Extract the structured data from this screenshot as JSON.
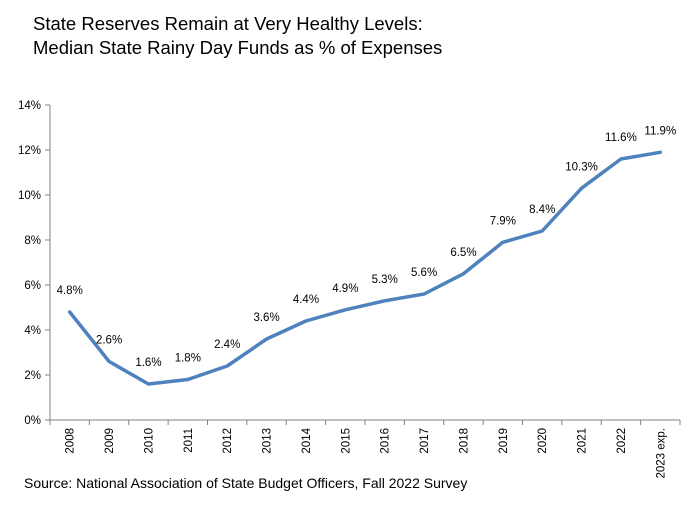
{
  "title_line1": "State Reserves Remain at Very Healthy Levels:",
  "title_line2": "Median State Rainy Day Funds as % of Expenses",
  "source": "Source: National Association of State Budget Officers, Fall 2022 Survey",
  "colors": {
    "line": "#4F81BD",
    "axis": "#808080"
  },
  "chart_data": {
    "type": "line",
    "title": "State Reserves Remain at Very Healthy Levels: Median State Rainy Day Funds as % of Expenses",
    "xlabel": "",
    "ylabel": "",
    "categories": [
      "2008",
      "2009",
      "2010",
      "2011",
      "2012",
      "2013",
      "2014",
      "2015",
      "2016",
      "2017",
      "2018",
      "2019",
      "2020",
      "2021",
      "2022",
      "2023 exp."
    ],
    "values": [
      4.8,
      2.6,
      1.6,
      1.8,
      2.4,
      3.6,
      4.4,
      4.9,
      5.3,
      5.6,
      6.5,
      7.9,
      8.4,
      10.3,
      11.6,
      11.9
    ],
    "data_labels": [
      "4.8%",
      "2.6%",
      "1.6%",
      "1.8%",
      "2.4%",
      "3.6%",
      "4.4%",
      "4.9%",
      "5.3%",
      "5.6%",
      "6.5%",
      "7.9%",
      "8.4%",
      "10.3%",
      "11.6%",
      "11.9%"
    ],
    "ylim": [
      0,
      14
    ],
    "yticks": [
      0,
      2,
      4,
      6,
      8,
      10,
      12,
      14
    ],
    "ytick_labels": [
      "0%",
      "2%",
      "4%",
      "6%",
      "8%",
      "10%",
      "12%",
      "14%"
    ],
    "grid": false,
    "legend": "none"
  }
}
